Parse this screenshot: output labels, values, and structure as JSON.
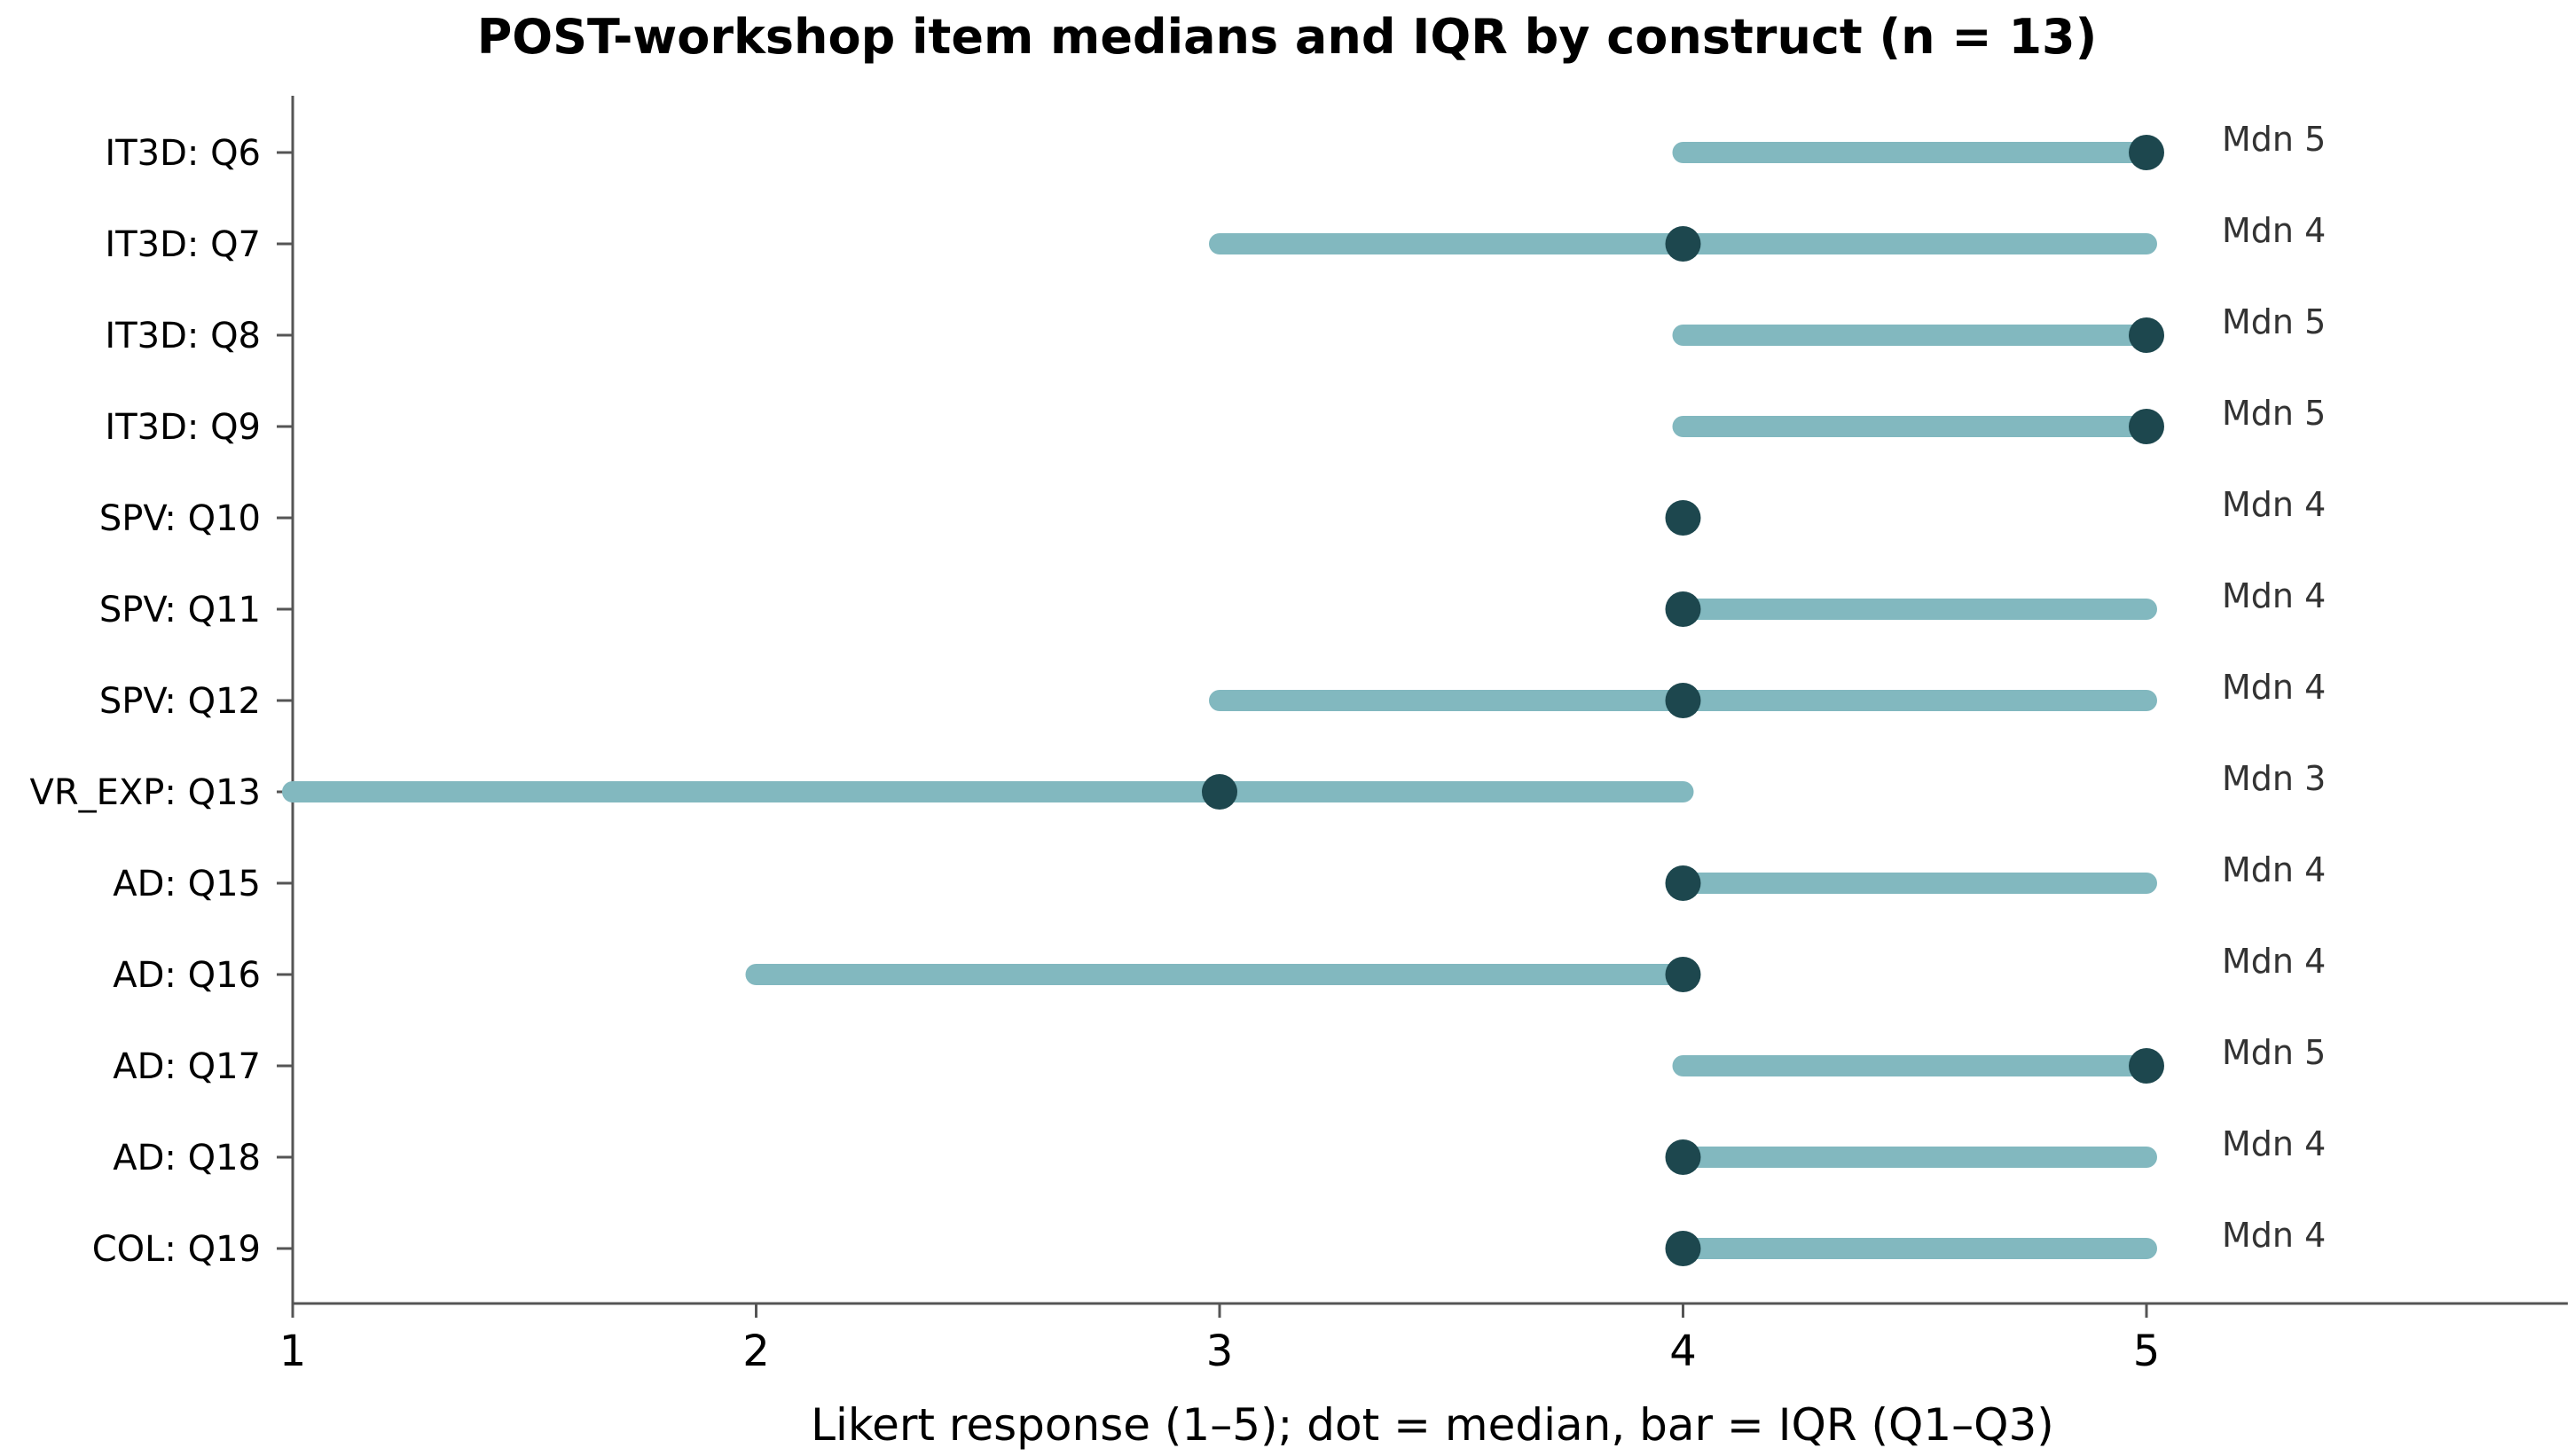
{
  "chart_data": {
    "type": "dot-range",
    "title": "POST-workshop item medians and IQR by construct (n = 13)",
    "xlabel": "Likert response (1–5); dot = median, bar = IQR (Q1–Q3)",
    "ylabel": "",
    "xlim": [
      1,
      5.9
    ],
    "xticks": [
      1,
      2,
      3,
      4,
      5
    ],
    "grid": false,
    "legend": "none",
    "colors": {
      "bar": "#82b8bf",
      "dot": "#1d474e",
      "axis": "#555555",
      "annotation": "#333333"
    },
    "annotation_prefix": "Mdn",
    "items": [
      {
        "label": "IT3D: Q6",
        "q1": 4,
        "median": 5,
        "q3": 5
      },
      {
        "label": "IT3D: Q7",
        "q1": 3,
        "median": 4,
        "q3": 5
      },
      {
        "label": "IT3D: Q8",
        "q1": 4,
        "median": 5,
        "q3": 5
      },
      {
        "label": "IT3D: Q9",
        "q1": 4,
        "median": 5,
        "q3": 5
      },
      {
        "label": "SPV: Q10",
        "q1": 4,
        "median": 4,
        "q3": 4
      },
      {
        "label": "SPV: Q11",
        "q1": 4,
        "median": 4,
        "q3": 5
      },
      {
        "label": "SPV: Q12",
        "q1": 3,
        "median": 4,
        "q3": 5
      },
      {
        "label": "VR_EXP: Q13",
        "q1": 1,
        "median": 3,
        "q3": 4
      },
      {
        "label": "AD: Q15",
        "q1": 4,
        "median": 4,
        "q3": 5
      },
      {
        "label": "AD: Q16",
        "q1": 2,
        "median": 4,
        "q3": 4
      },
      {
        "label": "AD: Q17",
        "q1": 4,
        "median": 5,
        "q3": 5
      },
      {
        "label": "AD: Q18",
        "q1": 4,
        "median": 4,
        "q3": 5
      },
      {
        "label": "COL: Q19",
        "q1": 4,
        "median": 4,
        "q3": 5
      }
    ]
  }
}
